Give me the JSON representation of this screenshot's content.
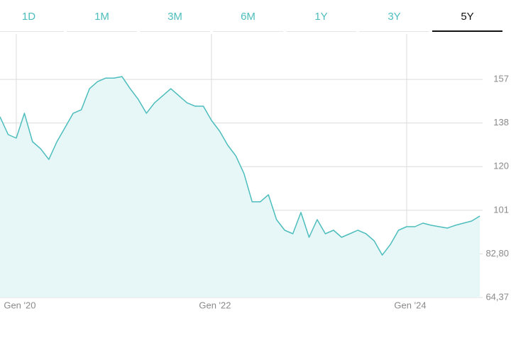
{
  "tabs": [
    "1D",
    "1M",
    "3M",
    "6M",
    "1Y",
    "3Y",
    "5Y"
  ],
  "selected_tab": 6,
  "chart_data": {
    "type": "line",
    "x": [
      "2019-11",
      "2019-12",
      "2020-01",
      "2020-02",
      "2020-03",
      "2020-04",
      "2020-05",
      "2020-06",
      "2020-07",
      "2020-08",
      "2020-09",
      "2020-10",
      "2020-11",
      "2020-12",
      "2021-01",
      "2021-02",
      "2021-03",
      "2021-04",
      "2021-05",
      "2021-06",
      "2021-07",
      "2021-08",
      "2021-09",
      "2021-10",
      "2021-11",
      "2021-12",
      "2022-01",
      "2022-02",
      "2022-03",
      "2022-04",
      "2022-05",
      "2022-06",
      "2022-07",
      "2022-08",
      "2022-09",
      "2022-10",
      "2022-11",
      "2022-12",
      "2023-01",
      "2023-02",
      "2023-03",
      "2023-04",
      "2023-05",
      "2023-06",
      "2023-07",
      "2023-08",
      "2023-09",
      "2023-10",
      "2023-11",
      "2023-12",
      "2024-01",
      "2024-02",
      "2024-03",
      "2024-04",
      "2024-05",
      "2024-06",
      "2024-07",
      "2024-08",
      "2024-09",
      "2024-10"
    ],
    "series": [
      {
        "color": "#4dbdbd",
        "fill": "#e7f7f7",
        "values": [
          140.7,
          133.2,
          131.7,
          142.2,
          130.2,
          127.2,
          122.7,
          130.2,
          136.2,
          142.2,
          143.7,
          152.6,
          155.6,
          157.1,
          157.1,
          157.7,
          152.6,
          148.1,
          142.2,
          146.6,
          149.6,
          152.6,
          149.6,
          146.6,
          145.2,
          145.2,
          139.2,
          134.7,
          128.7,
          124.2,
          116.7,
          104.8,
          104.8,
          107.8,
          97.3,
          92.8,
          91.3,
          100.3,
          89.8,
          97.3,
          91.3,
          92.8,
          89.8,
          91.3,
          92.8,
          91.3,
          88.3,
          82.3,
          86.8,
          92.8,
          94.3,
          94.3,
          95.8,
          94.9,
          94.3,
          93.7,
          94.9,
          95.8,
          96.7,
          98.8
        ]
      }
    ],
    "ylim": [
      64.37,
      175.7
    ],
    "yticks": [
      {
        "value": 64.37,
        "label": "64,37"
      },
      {
        "value": 82.8,
        "label": "82,80"
      },
      {
        "value": 101.23,
        "label": "101"
      },
      {
        "value": 119.66,
        "label": "120"
      },
      {
        "value": 138.09,
        "label": "138"
      },
      {
        "value": 156.52,
        "label": "157"
      }
    ],
    "xticks": [
      {
        "value": "2020-01",
        "label": "Gen '20"
      },
      {
        "value": "2022-01",
        "label": "Gen '22"
      },
      {
        "value": "2024-01",
        "label": "Gen '24"
      }
    ],
    "grid": true
  }
}
